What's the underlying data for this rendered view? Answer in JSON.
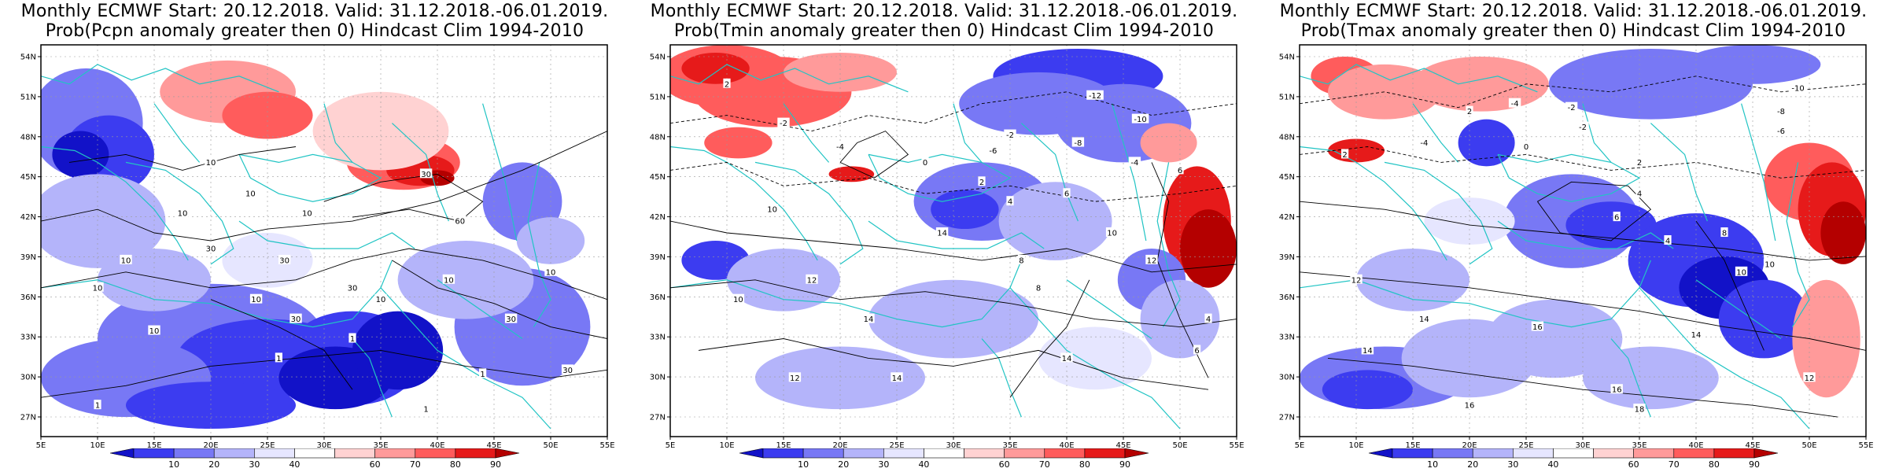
{
  "panels": [
    {
      "id": "pcpn",
      "title_line1": "Monthly ECMWF Start: 20.12.2018. Valid: 31.12.2018.-06.01.2019.",
      "title_line2": "Prob(Pcpn anomaly greater then 0) Hindcast Clim 1994-2010",
      "contour_labels": [
        "10",
        "10",
        "10",
        "10",
        "30",
        "30",
        "60",
        "30",
        "10",
        "30",
        "10",
        "10",
        "10",
        "30",
        "10",
        "30",
        "1",
        "1",
        "1",
        "30",
        "1",
        "10",
        "1",
        "10"
      ]
    },
    {
      "id": "tmin",
      "title_line1": "Monthly ECMWF Start: 20.12.2018. Valid: 31.12.2018.-06.01.2019.",
      "title_line2": "Prob(Tmin anomaly greater then 0) Hindcast Clim 1994-2010",
      "contour_labels": [
        "-12",
        "-10",
        "-8",
        "-6",
        "-4",
        "-2",
        "0",
        "2",
        "2",
        "4",
        "6",
        "8",
        "10",
        "12",
        "14",
        "14",
        "12",
        "10",
        "-4",
        "-2",
        "6",
        "8",
        "10",
        "12",
        "14",
        "14",
        "4",
        "6"
      ]
    },
    {
      "id": "tmax",
      "title_line1": "Monthly ECMWF Start: 20.12.2018. Valid: 31.12.2018.-06.01.2019.",
      "title_line2": "Prob(Tmax anomaly greater then 0) Hindcast Clim 1994-2010",
      "contour_labels": [
        "-10",
        "-8",
        "-6",
        "-4",
        "-2",
        "0",
        "2",
        "2",
        "4",
        "6",
        "8",
        "10",
        "12",
        "14",
        "16",
        "16",
        "14",
        "12",
        "10",
        "-4",
        "-2",
        "18",
        "16",
        "14",
        "2",
        "4"
      ]
    }
  ],
  "map": {
    "lat_labels": [
      "54N",
      "51N",
      "48N",
      "45N",
      "42N",
      "39N",
      "36N",
      "33N",
      "30N",
      "27N"
    ],
    "lon_labels": [
      "5E",
      "10E",
      "15E",
      "20E",
      "25E",
      "30E",
      "35E",
      "40E",
      "45E",
      "50E",
      "55E"
    ]
  },
  "colorbar": {
    "labels": [
      "10",
      "20",
      "30",
      "40",
      "60",
      "70",
      "80",
      "90"
    ],
    "colors": [
      "#1212c8",
      "#3c3cf0",
      "#7878f5",
      "#b4b4fa",
      "#e6e6ff",
      "#ffffff",
      "#ffd2d2",
      "#ff9a9a",
      "#ff5c5c",
      "#e61a1a",
      "#b40000"
    ]
  },
  "colors": {
    "coast": "#21c4c4",
    "contour": "#000000",
    "grid": "#9a9a9a"
  }
}
